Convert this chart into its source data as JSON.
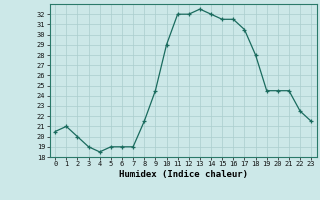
{
  "x": [
    0,
    1,
    2,
    3,
    4,
    5,
    6,
    7,
    8,
    9,
    10,
    11,
    12,
    13,
    14,
    15,
    16,
    17,
    18,
    19,
    20,
    21,
    22,
    23
  ],
  "y": [
    20.5,
    21.0,
    20.0,
    19.0,
    18.5,
    19.0,
    19.0,
    19.0,
    21.5,
    24.5,
    29.0,
    32.0,
    32.0,
    32.5,
    32.0,
    31.5,
    31.5,
    30.5,
    28.0,
    24.5,
    24.5,
    24.5,
    22.5,
    21.5
  ],
  "line_color": "#1a6b5e",
  "bg_color": "#cce8e8",
  "grid_color": "#aacece",
  "xlabel": "Humidex (Indice chaleur)",
  "ylim": [
    18,
    33
  ],
  "xlim": [
    -0.5,
    23.5
  ],
  "yticks": [
    18,
    19,
    20,
    21,
    22,
    23,
    24,
    25,
    26,
    27,
    28,
    29,
    30,
    31,
    32
  ],
  "xticks": [
    0,
    1,
    2,
    3,
    4,
    5,
    6,
    7,
    8,
    9,
    10,
    11,
    12,
    13,
    14,
    15,
    16,
    17,
    18,
    19,
    20,
    21,
    22,
    23
  ],
  "tick_fontsize": 5.0,
  "xlabel_fontsize": 6.5
}
